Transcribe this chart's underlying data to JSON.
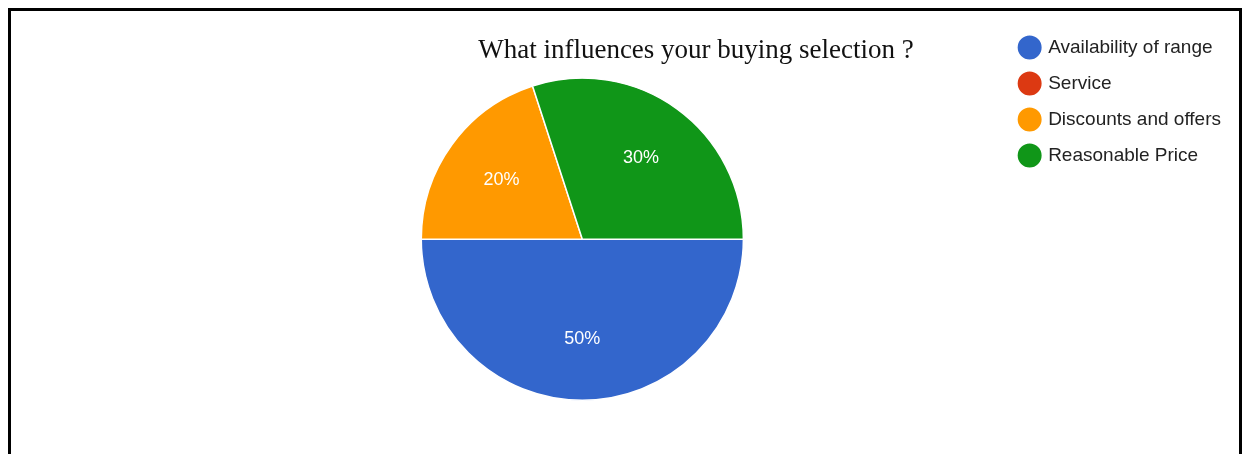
{
  "chart_data": {
    "type": "pie",
    "title": "What influences your buying selection ?",
    "categories": [
      "Availability of range",
      "Service",
      "Discounts and offers",
      "Reasonable Price"
    ],
    "values": [
      50,
      0,
      20,
      30
    ],
    "colors": [
      "#3366cc",
      "#dc3912",
      "#ff9900",
      "#109618"
    ],
    "value_labels": [
      "50%",
      null,
      "20%",
      "30%"
    ],
    "legend": "top right"
  }
}
